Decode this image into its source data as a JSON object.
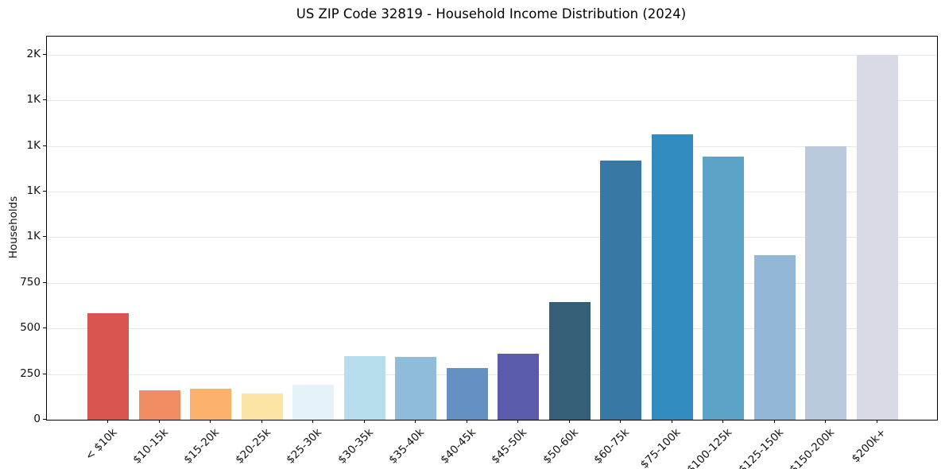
{
  "chart_data": {
    "type": "bar",
    "title": "US ZIP Code 32819 - Household Income Distribution (2024)",
    "xlabel": "",
    "ylabel": "Households",
    "categories": [
      "< $10k",
      "$10-15k",
      "$15-20k",
      "$20-25k",
      "$25-30k",
      "$30-35k",
      "$35-40k",
      "$40-45k",
      "$45-50k",
      "$50-60k",
      "$60-75k",
      "$75-100k",
      "$100-125k",
      "$125-150k",
      "$150-200k",
      "$200k+"
    ],
    "values": [
      585,
      160,
      170,
      145,
      190,
      350,
      345,
      285,
      360,
      645,
      1420,
      1565,
      1440,
      900,
      1500,
      2000
    ],
    "bar_colors": [
      "#d8564f",
      "#f18d62",
      "#fab26c",
      "#fce4a4",
      "#e5f2f7",
      "#b8ddec",
      "#90bcdc",
      "#6590c4",
      "#5a5cab",
      "#355f76",
      "#3779a4",
      "#338cbf",
      "#5ba4c8",
      "#92b7d7",
      "#bac9de",
      "#d8dae6"
    ],
    "ylim": [
      0,
      2100
    ],
    "yticks": [
      {
        "value": 0,
        "label": "0"
      },
      {
        "value": 250,
        "label": "250"
      },
      {
        "value": 500,
        "label": "500"
      },
      {
        "value": 750,
        "label": "750"
      },
      {
        "value": 1000,
        "label": "1K"
      },
      {
        "value": 1250,
        "label": "1K"
      },
      {
        "value": 1500,
        "label": "1K"
      },
      {
        "value": 1750,
        "label": "1K"
      },
      {
        "value": 2000,
        "label": "2K"
      }
    ],
    "grid": {
      "horizontal": true,
      "color": "#e7e7e7"
    },
    "legend": "none",
    "axis_color": "#000000",
    "text_color": "#111111",
    "background_color": "#ffffff"
  }
}
